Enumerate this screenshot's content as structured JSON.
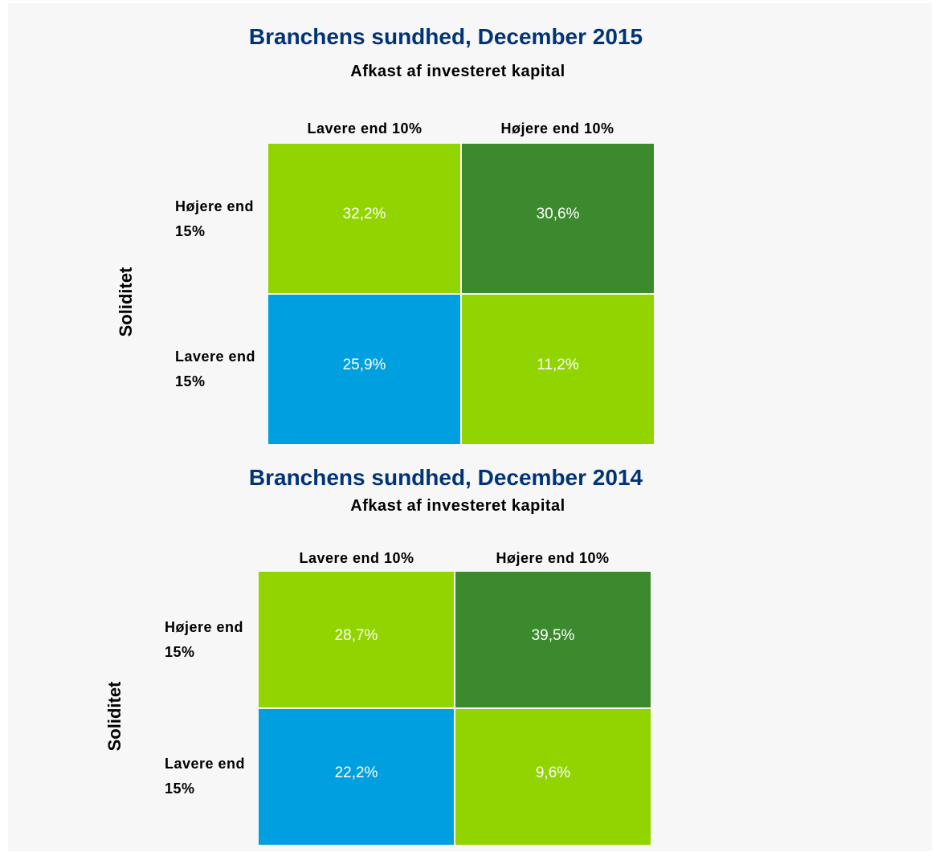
{
  "chart_data": [
    {
      "type": "heatmap",
      "title": "Branchens sundhed, December 2015",
      "subtitle": "Afkast af investeret kapital",
      "x_categories": [
        "Lavere end 10%",
        "Højere end 10%"
      ],
      "y_categories": [
        "Højere end 15%",
        "Lavere end 15%"
      ],
      "ylabel": "Soliditet",
      "values": [
        [
          32.2,
          30.6
        ],
        [
          25.9,
          11.2
        ]
      ],
      "value_labels": [
        [
          "32,2%",
          "30,6%"
        ],
        [
          "25,9%",
          "11,2%"
        ]
      ],
      "colors": [
        [
          "#92d400",
          "#3c8a2e"
        ],
        [
          "#009fdf",
          "#92d400"
        ]
      ]
    },
    {
      "type": "heatmap",
      "title": "Branchens sundhed, December 2014",
      "subtitle": "Afkast af investeret kapital",
      "x_categories": [
        "Lavere end 10%",
        "Højere end 10%"
      ],
      "y_categories": [
        "Højere end 15%",
        "Lavere end 15%"
      ],
      "ylabel": "Soliditet",
      "values": [
        [
          28.7,
          39.5
        ],
        [
          22.2,
          9.6
        ]
      ],
      "value_labels": [
        [
          "28,7%",
          "39,5%"
        ],
        [
          "22,2%",
          "9,6%"
        ]
      ],
      "colors": [
        [
          "#92d400",
          "#3c8a2e"
        ],
        [
          "#009fdf",
          "#92d400"
        ]
      ]
    }
  ]
}
